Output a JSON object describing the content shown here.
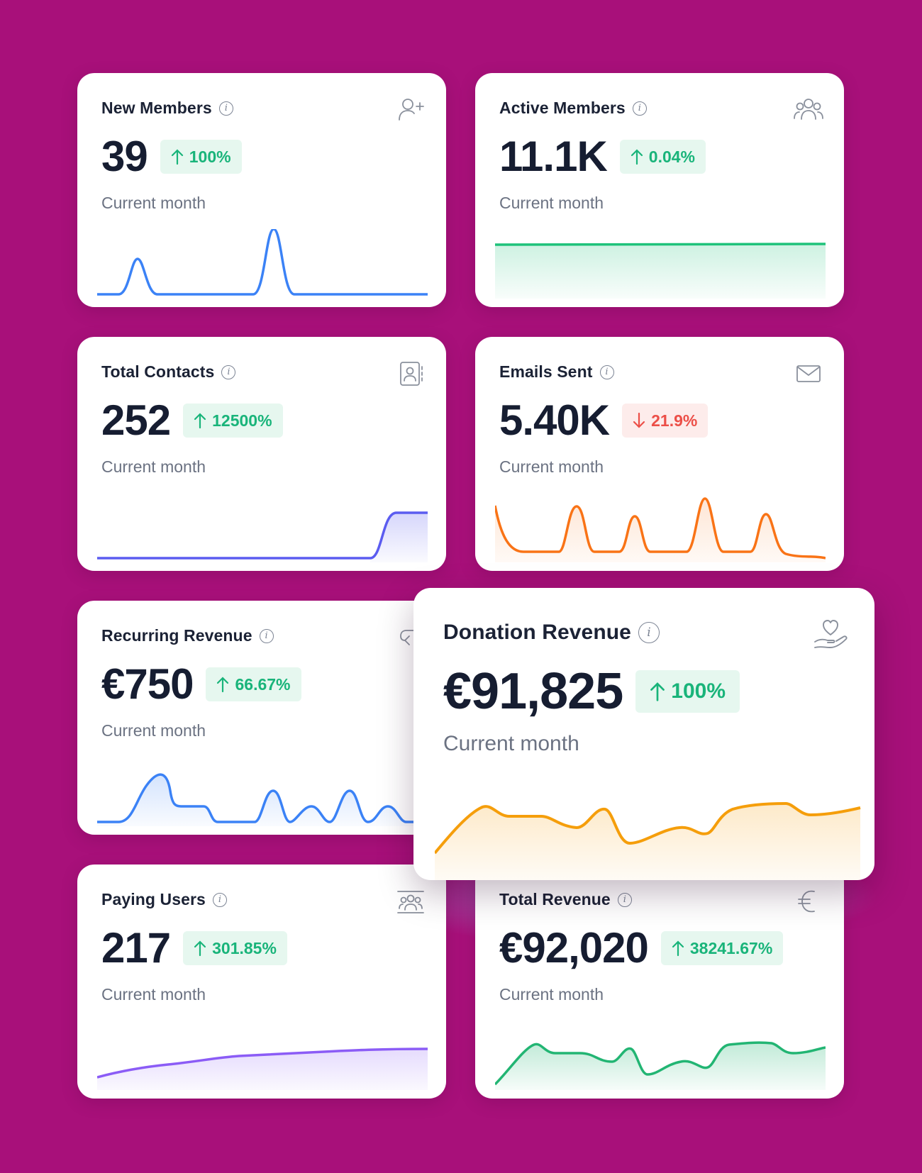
{
  "accent_colors": {
    "background": "#a8107a",
    "up": "#19b47a",
    "down": "#ec4f48"
  },
  "cards": {
    "new_members": {
      "title": "New Members",
      "value": "39",
      "change": "100%",
      "direction": "up",
      "subtitle": "Current month",
      "icon": "user-plus-icon",
      "line_color": "#3b82f6"
    },
    "active_members": {
      "title": "Active Members",
      "value": "11.1K",
      "change": "0.04%",
      "direction": "up",
      "subtitle": "Current month",
      "icon": "users-icon",
      "line_color": "#1ec27a"
    },
    "total_contacts": {
      "title": "Total Contacts",
      "value": "252",
      "change": "12500%",
      "direction": "up",
      "subtitle": "Current month",
      "icon": "contact-book-icon",
      "line_color": "#5b5cf0"
    },
    "emails_sent": {
      "title": "Emails Sent",
      "value": "5.40K",
      "change": "21.9%",
      "direction": "down",
      "subtitle": "Current month",
      "icon": "envelope-icon",
      "line_color": "#f97316"
    },
    "recurring_revenue": {
      "title": "Recurring Revenue",
      "value": "€750",
      "change": "66.67%",
      "direction": "up",
      "subtitle": "Current month",
      "icon": "recurring-icon",
      "line_color": "#3b82f6"
    },
    "donation_revenue": {
      "title": "Donation Revenue",
      "value": "€91,825",
      "change": "100%",
      "direction": "up",
      "subtitle": "Current month",
      "icon": "heart-hand-icon",
      "line_color": "#f59e0b"
    },
    "paying_users": {
      "title": "Paying Users",
      "value": "217",
      "change": "301.85%",
      "direction": "up",
      "subtitle": "Current month",
      "icon": "paying-users-icon",
      "line_color": "#8b5cf6"
    },
    "total_revenue": {
      "title": "Total Revenue",
      "value": "€92,020",
      "change": "38241.67%",
      "direction": "up",
      "subtitle": "Current month",
      "icon": "euro-icon",
      "line_color": "#22b573"
    }
  }
}
